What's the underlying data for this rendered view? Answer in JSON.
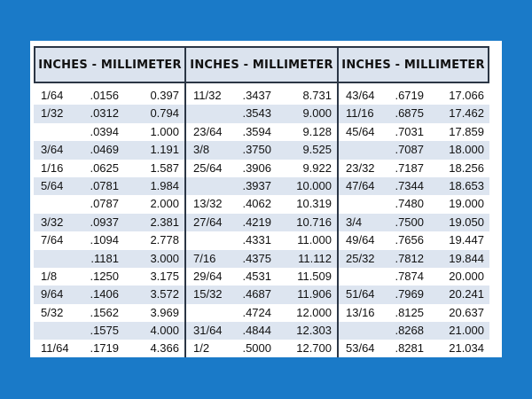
{
  "tables": [
    {
      "header": "INCHES - MILLIMETER",
      "rows": [
        [
          "1/64",
          ".0156",
          "0.397"
        ],
        [
          "1/32",
          ".0312",
          "0.794"
        ],
        [
          "",
          ".0394",
          "1.000"
        ],
        [
          "3/64",
          ".0469",
          "1.191"
        ],
        [
          "1/16",
          ".0625",
          "1.587"
        ],
        [
          "5/64",
          ".0781",
          "1.984"
        ],
        [
          "",
          ".0787",
          "2.000"
        ],
        [
          "3/32",
          ".0937",
          "2.381"
        ],
        [
          "7/64",
          ".1094",
          "2.778"
        ],
        [
          "",
          ".1181",
          "3.000"
        ],
        [
          "1/8",
          ".1250",
          "3.175"
        ],
        [
          "9/64",
          ".1406",
          "3.572"
        ],
        [
          "5/32",
          ".1562",
          "3.969"
        ],
        [
          "",
          ".1575",
          "4.000"
        ],
        [
          "11/64",
          ".1719",
          "4.366"
        ]
      ]
    },
    {
      "header": "INCHES - MILLIMETER",
      "rows": [
        [
          "11/32",
          ".3437",
          "8.731"
        ],
        [
          "",
          ".3543",
          "9.000"
        ],
        [
          "23/64",
          ".3594",
          "9.128"
        ],
        [
          "3/8",
          ".3750",
          "9.525"
        ],
        [
          "25/64",
          ".3906",
          "9.922"
        ],
        [
          "",
          ".3937",
          "10.000"
        ],
        [
          "13/32",
          ".4062",
          "10.319"
        ],
        [
          "27/64",
          ".4219",
          "10.716"
        ],
        [
          "",
          ".4331",
          "11.000"
        ],
        [
          "7/16",
          ".4375",
          "11.112"
        ],
        [
          "29/64",
          ".4531",
          "11.509"
        ],
        [
          "15/32",
          ".4687",
          "11.906"
        ],
        [
          "",
          ".4724",
          "12.000"
        ],
        [
          "31/64",
          ".4844",
          "12.303"
        ],
        [
          "1/2",
          ".5000",
          "12.700"
        ]
      ]
    },
    {
      "header": "INCHES - MILLIMETER",
      "rows": [
        [
          "43/64",
          ".6719",
          "17.066"
        ],
        [
          "11/16",
          ".6875",
          "17.462"
        ],
        [
          "45/64",
          ".7031",
          "17.859"
        ],
        [
          "",
          ".7087",
          "18.000"
        ],
        [
          "23/32",
          ".7187",
          "18.256"
        ],
        [
          "47/64",
          ".7344",
          "18.653"
        ],
        [
          "",
          ".7480",
          "19.000"
        ],
        [
          "3/4",
          ".7500",
          "19.050"
        ],
        [
          "49/64",
          ".7656",
          "19.447"
        ],
        [
          "25/32",
          ".7812",
          "19.844"
        ],
        [
          "",
          ".7874",
          "20.000"
        ],
        [
          "51/64",
          ".7969",
          "20.241"
        ],
        [
          "13/16",
          ".8125",
          "20.637"
        ],
        [
          "",
          ".8268",
          "21.000"
        ],
        [
          "53/64",
          ".8281",
          "21.034"
        ]
      ]
    }
  ]
}
